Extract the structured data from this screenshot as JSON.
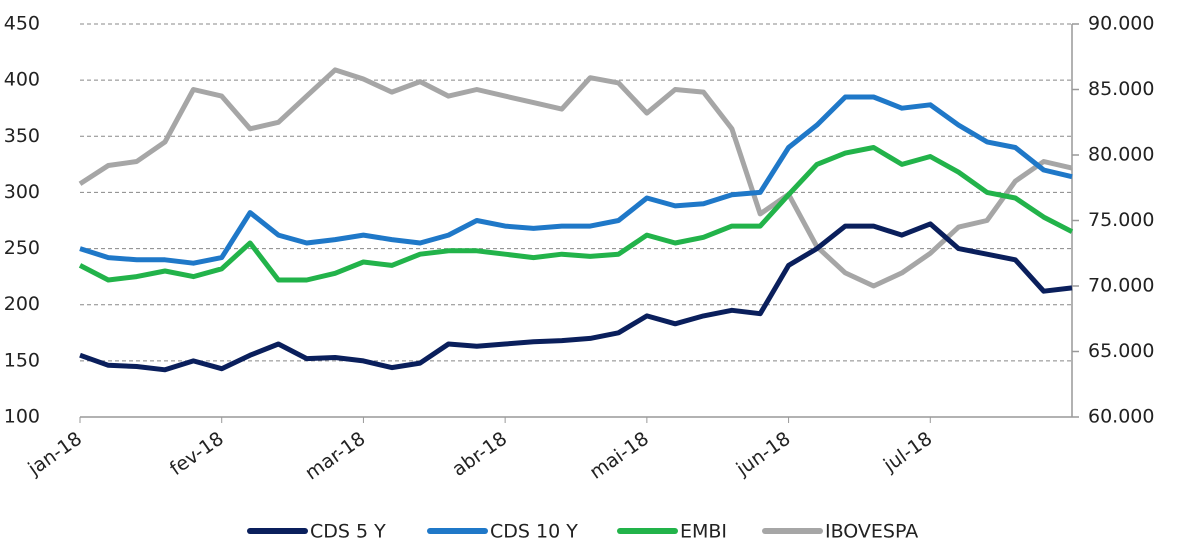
{
  "chart_data": {
    "type": "line",
    "categories": [
      "jan-18",
      null,
      null,
      null,
      null,
      "fev-18",
      null,
      null,
      null,
      null,
      "mar-18",
      null,
      null,
      null,
      null,
      "abr-18",
      null,
      null,
      null,
      null,
      "mai-18",
      null,
      null,
      null,
      null,
      "jun-18",
      null,
      null,
      null,
      null,
      "jul-18",
      null,
      null,
      null,
      null,
      null
    ],
    "series": [
      {
        "name": "CDS 5 Y",
        "color": "#0a1f5c",
        "values": [
          155,
          146,
          145,
          142,
          150,
          143,
          155,
          165,
          152,
          153,
          150,
          144,
          148,
          165,
          163,
          165,
          167,
          168,
          170,
          175,
          190,
          183,
          190,
          195,
          192,
          235,
          250,
          270,
          270,
          262,
          272,
          250,
          245,
          240,
          212,
          215
        ]
      },
      {
        "name": "CDS 10 Y",
        "color": "#1f78c8",
        "values": [
          250,
          242,
          240,
          240,
          237,
          242,
          282,
          262,
          255,
          258,
          262,
          258,
          255,
          262,
          275,
          270,
          268,
          270,
          270,
          275,
          295,
          288,
          290,
          298,
          300,
          340,
          360,
          385,
          385,
          375,
          378,
          360,
          345,
          340,
          320,
          314
        ]
      },
      {
        "name": "EMBI",
        "color": "#22b34a",
        "values": [
          235,
          222,
          225,
          230,
          225,
          232,
          255,
          222,
          222,
          228,
          238,
          235,
          245,
          248,
          248,
          245,
          242,
          245,
          243,
          245,
          262,
          255,
          260,
          270,
          270,
          298,
          325,
          335,
          340,
          325,
          332,
          318,
          300,
          295,
          278,
          265
        ]
      },
      {
        "name": "IBOVESPA",
        "color": "#a6a6a6",
        "axis": "y2",
        "values": [
          77800,
          79200,
          79500,
          81000,
          85000,
          84500,
          82000,
          82500,
          84500,
          86500,
          85800,
          84800,
          85600,
          84500,
          85000,
          84500,
          84000,
          83500,
          85900,
          85500,
          83200,
          85000,
          84800,
          82000,
          75500,
          77000,
          73000,
          71000,
          70000,
          71000,
          72500,
          74500,
          75000,
          78000,
          79500,
          79000
        ]
      }
    ],
    "ylim": [
      100,
      450
    ],
    "yticks": [
      100,
      150,
      200,
      250,
      300,
      350,
      400,
      450
    ],
    "y2lim": [
      60000,
      90000
    ],
    "y2ticks": [
      {
        "value": 60000,
        "label": "60.000"
      },
      {
        "value": 65000,
        "label": "65.000"
      },
      {
        "value": 70000,
        "label": "70.000"
      },
      {
        "value": 75000,
        "label": "75.000"
      },
      {
        "value": 80000,
        "label": "80.000"
      },
      {
        "value": 85000,
        "label": "85.000"
      },
      {
        "value": 90000,
        "label": "90.000"
      }
    ],
    "grid": true,
    "legend": "bottom"
  }
}
